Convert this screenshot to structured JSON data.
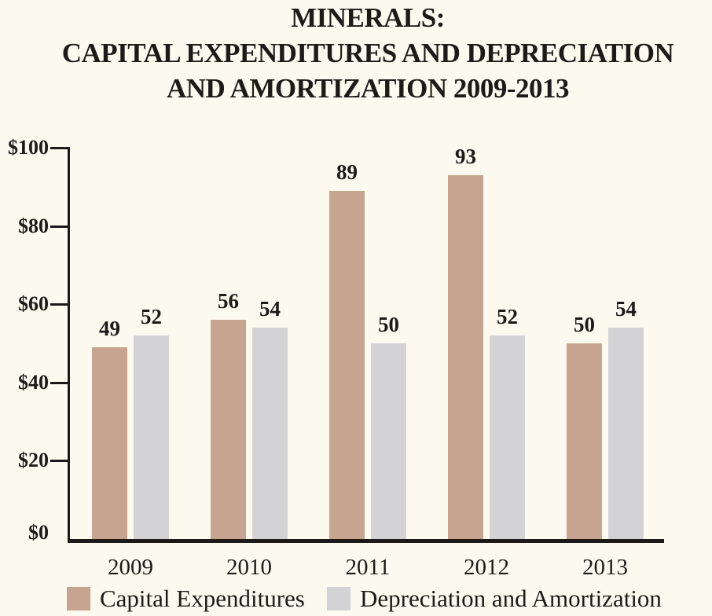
{
  "title": {
    "line1": "MINERALS:",
    "line2": "CAPITAL EXPENDITURES AND DEPRECIATION",
    "line3": "AND AMORTIZATION 2009-2013"
  },
  "chart_data": {
    "type": "bar",
    "title": "MINERALS: CAPITAL EXPENDITURES AND DEPRECIATION AND AMORTIZATION 2009-2013",
    "categories": [
      "2009",
      "2010",
      "2011",
      "2012",
      "2013"
    ],
    "series": [
      {
        "name": "Capital Expenditures",
        "color": "#c6a48f",
        "values": [
          49,
          56,
          89,
          93,
          50
        ]
      },
      {
        "name": "Depreciation and Amortization",
        "color": "#d3d3d6",
        "values": [
          52,
          54,
          50,
          52,
          54
        ]
      }
    ],
    "xlabel": "",
    "ylabel": "",
    "ylim": [
      0,
      100
    ],
    "yticks": [
      {
        "value": 0,
        "label": "$0"
      },
      {
        "value": 20,
        "label": "$20"
      },
      {
        "value": 40,
        "label": "$40"
      },
      {
        "value": 60,
        "label": "$60"
      },
      {
        "value": 80,
        "label": "$80"
      },
      {
        "value": 100,
        "label": "$100"
      }
    ],
    "grid": false,
    "legend_position": "bottom",
    "value_labels_shown": true
  },
  "colors": {
    "background": "#fcf9ee",
    "axis": "#1c1a19",
    "text": "#1d1a18",
    "capital_expenditures": "#c6a48f",
    "depreciation_amortization": "#d3d3d6"
  }
}
